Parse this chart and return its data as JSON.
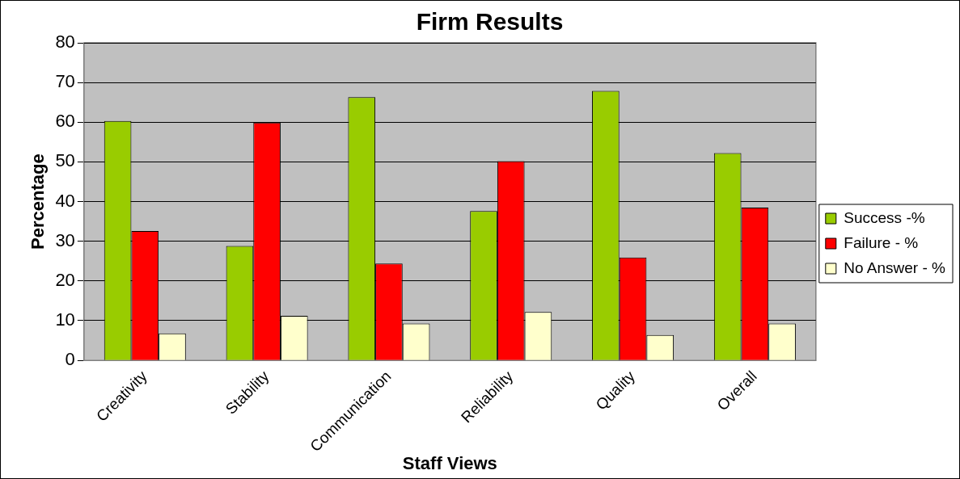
{
  "chart_data": {
    "type": "bar",
    "title": "Firm Results",
    "xlabel": "Staff Views",
    "ylabel": "Percentage",
    "categories": [
      "Creativity",
      "Stability",
      "Communication",
      "Reliability",
      "Quality",
      "Overall"
    ],
    "series": [
      {
        "name": "Success -%",
        "color": "#99cc00",
        "values": [
          60.3,
          28.8,
          66.3,
          37.6,
          67.9,
          52.2
        ]
      },
      {
        "name": "Failure - %",
        "color": "#ff0000",
        "values": [
          32.6,
          59.9,
          24.4,
          50.2,
          25.9,
          38.5
        ]
      },
      {
        "name": "No Answer - %",
        "color": "#ffffcc",
        "values": [
          6.8,
          11.2,
          9.3,
          12.2,
          6.4,
          9.3
        ]
      }
    ],
    "ylim": [
      0,
      80
    ],
    "yticks": [
      0,
      10,
      20,
      30,
      40,
      50,
      60,
      70,
      80
    ],
    "grid": "y",
    "legend": "right"
  }
}
